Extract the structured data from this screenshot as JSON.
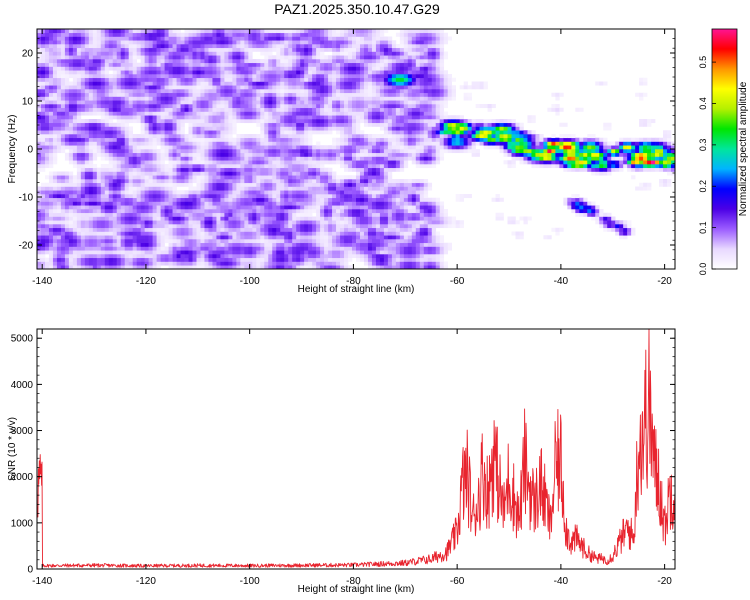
{
  "title": "PAZ1.2025.350.10.47.G29",
  "chart_data": [
    {
      "type": "heatmap",
      "xlabel": "Height of straight line (km)",
      "ylabel": "Frequency (Hz)",
      "xlim": [
        -141,
        -18
      ],
      "ylim": [
        -25,
        25
      ],
      "x_ticks": [
        -140,
        -120,
        -100,
        -80,
        -60,
        -40,
        -20
      ],
      "y_ticks": [
        -20,
        -10,
        0,
        10,
        20
      ],
      "colorbar": {
        "label": "Normalized spectral amplitude",
        "range": [
          0,
          0.58
        ],
        "ticks": [
          0.0,
          0.1,
          0.2,
          0.3,
          0.4,
          0.5
        ],
        "tick_labels": [
          "0.0",
          "0.1",
          "0.2",
          "0.3",
          "0.4",
          "0.5"
        ],
        "colors": [
          "#ffffff",
          "#e8d8ff",
          "#9b5cff",
          "#4b00e6",
          "#0000ff",
          "#00b4ff",
          "#00e69c",
          "#00e600",
          "#b4f000",
          "#ffff00",
          "#ff9600",
          "#ff0000",
          "#ff1493"
        ]
      },
      "features": [
        {
          "x_range": [
            -141,
            -65
          ],
          "freq_range": [
            -25,
            25
          ],
          "amplitude": "0.03-0.12",
          "description_note": "noise"
        },
        {
          "x": -71,
          "freq": 14.5,
          "amplitude": 0.35
        },
        {
          "x_range": [
            -62,
            -20
          ],
          "freq_center_start": 3,
          "freq_center_end": -3,
          "amplitude_peak": 0.57
        },
        {
          "x_range": [
            -38,
            -27
          ],
          "freq_start": -11,
          "freq_end": -17,
          "amplitude_peak": 0.28
        }
      ],
      "grid": false
    },
    {
      "type": "line",
      "xlabel": "Height of straight line (km)",
      "ylabel": "SNR (10 * v/v)",
      "xlim": [
        -141,
        -18
      ],
      "ylim": [
        0,
        5200
      ],
      "x_ticks": [
        -140,
        -120,
        -100,
        -80,
        -60,
        -40,
        -20
      ],
      "y_ticks": [
        0,
        1000,
        2000,
        3000,
        4000,
        5000
      ],
      "series": [
        {
          "color": "#e8242e",
          "x": [
            -140,
            -130,
            -120,
            -110,
            -100,
            -90,
            -80,
            -70,
            -65,
            -62,
            -60,
            -59,
            -58,
            -57,
            -56,
            -55,
            -54,
            -53,
            -52,
            -51,
            -50,
            -49,
            -48,
            -47,
            -46,
            -45,
            -44,
            -43,
            -42,
            -41,
            -40,
            -39,
            -38,
            -37,
            -36,
            -35,
            -34,
            -33,
            -32,
            -31,
            -30,
            -29,
            -28,
            -27,
            -26,
            -25,
            -24,
            -23,
            -22,
            -21,
            -20,
            -19,
            -18
          ],
          "y": [
            100,
            110,
            95,
            105,
            100,
            110,
            120,
            180,
            300,
            500,
            1100,
            2500,
            2800,
            1500,
            2000,
            3000,
            2200,
            3500,
            2600,
            1700,
            2800,
            2100,
            1500,
            3200,
            2400,
            1900,
            2600,
            2000,
            1300,
            3100,
            3200,
            1200,
            800,
            900,
            700,
            500,
            400,
            300,
            320,
            250,
            400,
            700,
            1000,
            1200,
            900,
            3800,
            4200,
            5100,
            3000,
            2600,
            1200,
            2300,
            2500
          ]
        }
      ],
      "grid": false
    }
  ]
}
